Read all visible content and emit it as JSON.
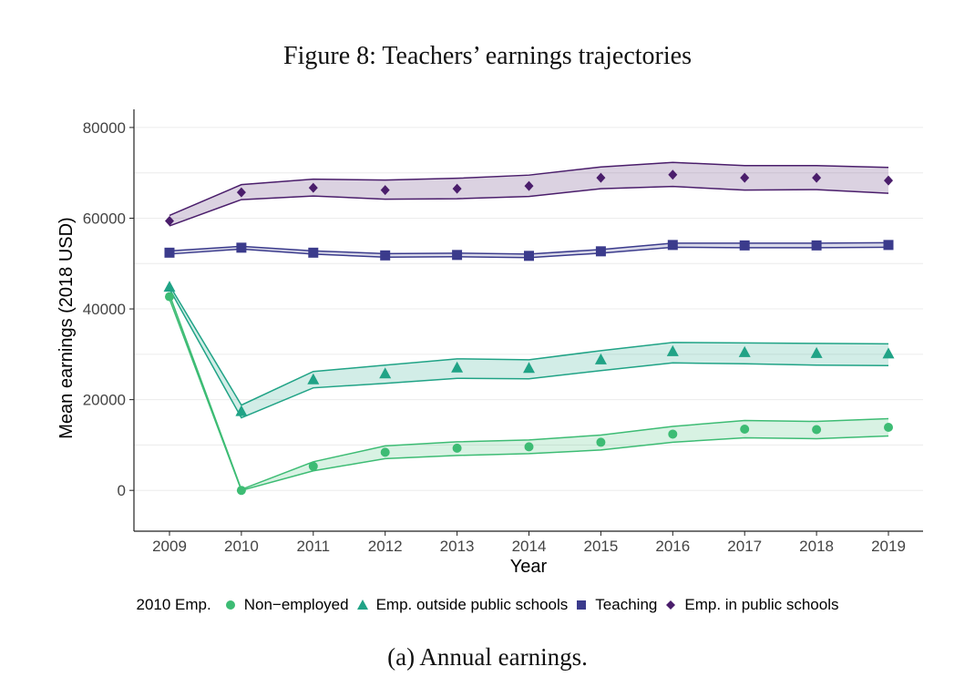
{
  "figure": {
    "title": "Figure 8: Teachers’ earnings trajectories",
    "caption": "(a) Annual earnings."
  },
  "chart_data": {
    "type": "line",
    "title": "Figure 8: Teachers’ earnings trajectories",
    "xlabel": "Year",
    "ylabel": "Mean earnings (2018 USD)",
    "x": [
      2009,
      2010,
      2011,
      2012,
      2013,
      2014,
      2015,
      2016,
      2017,
      2018,
      2019
    ],
    "x_tick_labels": [
      "2009",
      "2010",
      "2011",
      "2012",
      "2013",
      "2014",
      "2015",
      "2016",
      "2017",
      "2018",
      "2019"
    ],
    "ylim": [
      -9000,
      84000
    ],
    "y_ticks": [
      0,
      20000,
      40000,
      60000,
      80000
    ],
    "y_tick_labels": [
      "0",
      "20000",
      "40000",
      "60000",
      "80000"
    ],
    "grid": "horizontal",
    "legend_title": "2010 Emp.",
    "legend_position": "bottom",
    "series": [
      {
        "name": "Non−employed",
        "key": "nonemployed",
        "marker": "circle",
        "color": "#3dbc74",
        "values": [
          42700,
          0,
          5300,
          8400,
          9300,
          9600,
          10600,
          12400,
          13500,
          13400,
          13900
        ],
        "lower": [
          42200,
          0,
          4300,
          7000,
          7700,
          8100,
          8900,
          10600,
          11600,
          11400,
          12000
        ],
        "upper": [
          43200,
          200,
          6300,
          9800,
          10700,
          11100,
          12200,
          14100,
          15400,
          15200,
          15800
        ]
      },
      {
        "name": "Emp. outside public schools",
        "key": "outside",
        "marker": "triangle",
        "color": "#20a386",
        "values": [
          44800,
          17400,
          24400,
          25700,
          27000,
          26900,
          28800,
          30600,
          30400,
          30200,
          30100
        ],
        "lower": [
          44400,
          16000,
          22600,
          23600,
          24700,
          24600,
          26400,
          28100,
          27900,
          27600,
          27500
        ],
        "upper": [
          45200,
          18800,
          26200,
          27600,
          29000,
          28800,
          30800,
          32600,
          32500,
          32400,
          32300
        ]
      },
      {
        "name": "Teaching",
        "key": "teaching",
        "marker": "square",
        "color": "#3b3b8c",
        "values": [
          52400,
          53500,
          52400,
          51800,
          51900,
          51700,
          52700,
          54100,
          54000,
          54000,
          54100
        ],
        "lower": [
          52100,
          53200,
          52100,
          51400,
          51500,
          51300,
          52300,
          53600,
          53500,
          53500,
          53600
        ],
        "upper": [
          52800,
          53800,
          52800,
          52200,
          52300,
          52100,
          53100,
          54500,
          54500,
          54500,
          54600
        ]
      },
      {
        "name": "Emp. in public schools",
        "key": "public",
        "marker": "diamond",
        "color": "#4a1d6b",
        "values": [
          59400,
          65700,
          66700,
          66200,
          66500,
          67100,
          68900,
          69600,
          68900,
          68900,
          68300
        ],
        "lower": [
          58300,
          64100,
          64900,
          64200,
          64300,
          64800,
          66500,
          67000,
          66200,
          66300,
          65500
        ],
        "upper": [
          60600,
          67400,
          68600,
          68400,
          68800,
          69500,
          71300,
          72300,
          71600,
          71600,
          71200
        ]
      }
    ]
  }
}
